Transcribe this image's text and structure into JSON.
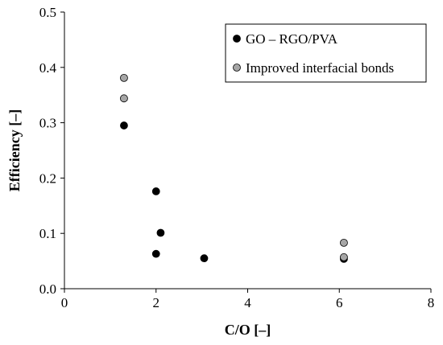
{
  "chart_data": {
    "type": "scatter",
    "xlabel": "C/O [–]",
    "ylabel": "Efficiency [–]",
    "xlim": [
      0,
      8
    ],
    "ylim": [
      0,
      0.5
    ],
    "xticks": [
      "0",
      "2",
      "4",
      "6",
      "8"
    ],
    "yticks": [
      "0.0",
      "0.1",
      "0.2",
      "0.3",
      "0.4",
      "0.5"
    ],
    "xtick_values": [
      0,
      2,
      4,
      6,
      8
    ],
    "ytick_values": [
      0,
      0.1,
      0.2,
      0.3,
      0.4,
      0.5
    ],
    "grid": false,
    "legend_position": "top-right",
    "series": [
      {
        "name": "GO – RGO/PVA",
        "color": "#000000",
        "points": [
          {
            "x": 1.3,
            "y": 0.295
          },
          {
            "x": 2.0,
            "y": 0.176
          },
          {
            "x": 2.1,
            "y": 0.101
          },
          {
            "x": 2.0,
            "y": 0.063
          },
          {
            "x": 3.05,
            "y": 0.055
          },
          {
            "x": 6.1,
            "y": 0.054
          }
        ]
      },
      {
        "name": "Improved interfacial bonds",
        "color": "#a6a6a6",
        "points": [
          {
            "x": 1.3,
            "y": 0.381
          },
          {
            "x": 1.3,
            "y": 0.344
          },
          {
            "x": 6.1,
            "y": 0.083
          },
          {
            "x": 6.1,
            "y": 0.057
          }
        ]
      }
    ]
  }
}
